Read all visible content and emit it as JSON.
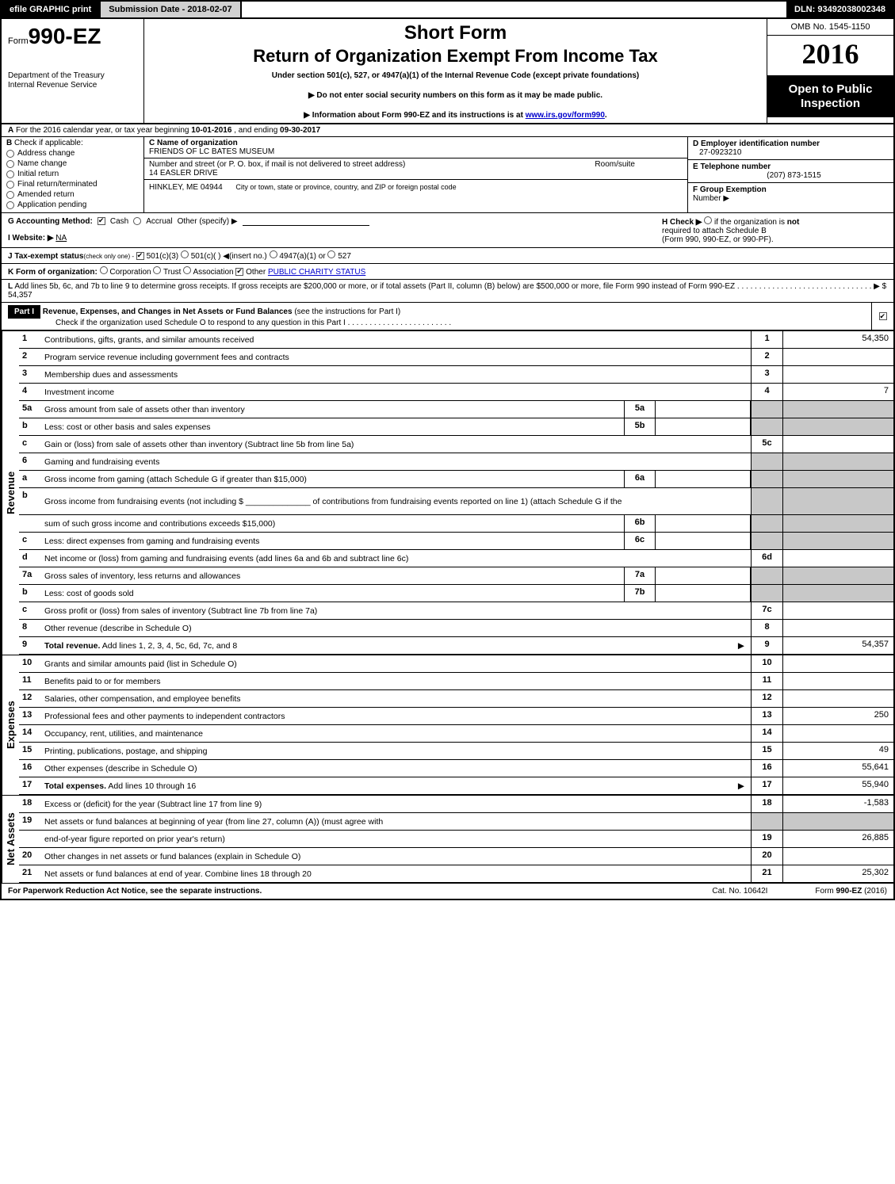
{
  "topbar": {
    "efile": "efile GRAPHIC print",
    "submission_label": "Submission Date - 2018-02-07",
    "dln": "DLN: 93492038002348"
  },
  "header": {
    "form_prefix": "Form",
    "form_no": "990-EZ",
    "dept1": "Department of the Treasury",
    "dept2": "Internal Revenue Service",
    "short_form": "Short Form",
    "title": "Return of Organization Exempt From Income Tax",
    "sub1": "Under section 501(c), 527, or 4947(a)(1) of the Internal Revenue Code (except private foundations)",
    "sub2a": "▶ Do not enter social security numbers on this form as it may be made public.",
    "sub2b_pre": "▶ Information about Form 990-EZ and its instructions is at ",
    "sub2b_link": "www.irs.gov/form990",
    "sub2b_post": ".",
    "omb": "OMB No. 1545-1150",
    "year": "2016",
    "open1": "Open to Public",
    "open2": "Inspection"
  },
  "rowA": {
    "letter": "A",
    "text_pre": "For the 2016 calendar year, or tax year beginning ",
    "begin": "10-01-2016",
    "text_mid": ", and ending ",
    "end": "09-30-2017"
  },
  "colB": {
    "letter": "B",
    "label": "Check if applicable:",
    "items": [
      "Address change",
      "Name change",
      "Initial return",
      "Final return/terminated",
      "Amended return",
      "Application pending"
    ]
  },
  "colC": {
    "c_label": "C Name of organization",
    "c_name": "FRIENDS OF LC BATES MUSEUM",
    "addr_label": "Number and street (or P. O. box, if mail is not delivered to street address)",
    "addr": "14 EASLER DRIVE",
    "room_label": "Room/suite",
    "city_line": "HINKLEY, ME  04944",
    "city_help": "City or town, state or province, country, and ZIP or foreign postal code"
  },
  "colDEF": {
    "d_label": "D Employer identification number",
    "d_val": "27-0923210",
    "e_label": "E Telephone number",
    "e_val": "(207) 873-1515",
    "f_label": "F Group Exemption",
    "f_label2": "Number   ▶"
  },
  "rowG": {
    "g_label": "G Accounting Method:",
    "g_opts": [
      "Cash",
      "Accrual",
      "Other (specify) ▶"
    ],
    "h_label": "H   Check ▶",
    "h_text1": "if the organization is ",
    "h_not": "not",
    "h_text2": "required to attach Schedule B",
    "h_text3": "(Form 990, 990-EZ, or 990-PF)."
  },
  "rowI": {
    "label": "I Website: ▶",
    "val": "NA"
  },
  "rowJ": {
    "label": "J Tax-exempt status",
    "small": "(check only one) -",
    "o1": "501(c)(3)",
    "o2": "501(c)(  ) ◀(insert no.)",
    "o3": "4947(a)(1) or",
    "o4": "527"
  },
  "rowK": {
    "label": "K Form of organization:",
    "opts": [
      "Corporation",
      "Trust",
      "Association",
      "Other"
    ],
    "other_link": "PUBLIC CHARITY STATUS"
  },
  "rowL": {
    "label": "L",
    "text": "Add lines 5b, 6c, and 7b to line 9 to determine gross receipts. If gross receipts are $200,000 or more, or if total assets (Part II, column (B) below) are $500,000 or more, file Form 990 instead of Form 990-EZ",
    "dots": ". . . . . . . . . . . . . . . . . . . . . . . . . . . . . . .",
    "amt": "▶ $ 54,357"
  },
  "part1": {
    "hdr": "Part I",
    "title": "Revenue, Expenses, and Changes in Net Assets or Fund Balances",
    "title_paren": "(see the instructions for Part I)",
    "check_line": "Check if the organization used Schedule O to respond to any question in this Part I ",
    "check_dots": ". . . . . . . . . . . . . . . . . . . . . . . ."
  },
  "sections": [
    {
      "side": "Revenue",
      "rows": [
        {
          "n": "1",
          "desc": "Contributions, gifts, grants, and similar amounts received",
          "rn": "1",
          "rv": "54,350"
        },
        {
          "n": "2",
          "desc": "Program service revenue including government fees and contracts",
          "rn": "2",
          "rv": ""
        },
        {
          "n": "3",
          "desc": "Membership dues and assessments",
          "rn": "3",
          "rv": ""
        },
        {
          "n": "4",
          "desc": "Investment income",
          "rn": "4",
          "rv": "7"
        },
        {
          "n": "5a",
          "desc": "Gross amount from sale of assets other than inventory",
          "mn": "5a",
          "grey_r": true
        },
        {
          "n": "b",
          "desc": "Less: cost or other basis and sales expenses",
          "mn": "5b",
          "grey_r": true
        },
        {
          "n": "c",
          "desc": "Gain or (loss) from sale of assets other than inventory (Subtract line 5b from line 5a)",
          "rn": "5c",
          "rv": ""
        },
        {
          "n": "6",
          "desc": "Gaming and fundraising events",
          "grey_r": true,
          "no_r": true
        },
        {
          "n": "a",
          "desc": "Gross income from gaming (attach Schedule G if greater than $15,000)",
          "mn": "6a",
          "grey_r": true
        },
        {
          "n": "b",
          "desc": "Gross income from fundraising events (not including $ ______________ of contributions from fundraising events reported on line 1) (attach Schedule G if the",
          "grey_r": true,
          "no_r": true,
          "tall": true
        },
        {
          "n": "",
          "desc": "sum of such gross income and contributions exceeds $15,000)",
          "mn": "6b",
          "grey_r": true
        },
        {
          "n": "c",
          "desc": "Less: direct expenses from gaming and fundraising events",
          "mn": "6c",
          "grey_r": true
        },
        {
          "n": "d",
          "desc": "Net income or (loss) from gaming and fundraising events (add lines 6a and 6b and subtract line 6c)",
          "rn": "6d",
          "rv": ""
        },
        {
          "n": "7a",
          "desc": "Gross sales of inventory, less returns and allowances",
          "mn": "7a",
          "grey_r": true
        },
        {
          "n": "b",
          "desc": "Less: cost of goods sold",
          "mn": "7b",
          "grey_r": true
        },
        {
          "n": "c",
          "desc": "Gross profit or (loss) from sales of inventory (Subtract line 7b from line 7a)",
          "rn": "7c",
          "rv": ""
        },
        {
          "n": "8",
          "desc": "Other revenue (describe in Schedule O)",
          "rn": "8",
          "rv": ""
        },
        {
          "n": "9",
          "desc": "Total revenue. Add lines 1, 2, 3, 4, 5c, 6d, 7c, and 8",
          "rn": "9",
          "rv": "54,357",
          "bold": true,
          "arrow": true
        }
      ]
    },
    {
      "side": "Expenses",
      "rows": [
        {
          "n": "10",
          "desc": "Grants and similar amounts paid (list in Schedule O)",
          "rn": "10",
          "rv": ""
        },
        {
          "n": "11",
          "desc": "Benefits paid to or for members",
          "rn": "11",
          "rv": ""
        },
        {
          "n": "12",
          "desc": "Salaries, other compensation, and employee benefits",
          "rn": "12",
          "rv": ""
        },
        {
          "n": "13",
          "desc": "Professional fees and other payments to independent contractors",
          "rn": "13",
          "rv": "250"
        },
        {
          "n": "14",
          "desc": "Occupancy, rent, utilities, and maintenance",
          "rn": "14",
          "rv": ""
        },
        {
          "n": "15",
          "desc": "Printing, publications, postage, and shipping",
          "rn": "15",
          "rv": "49"
        },
        {
          "n": "16",
          "desc": "Other expenses (describe in Schedule O)",
          "rn": "16",
          "rv": "55,641"
        },
        {
          "n": "17",
          "desc": "Total expenses. Add lines 10 through 16",
          "rn": "17",
          "rv": "55,940",
          "bold": true,
          "arrow": true
        }
      ]
    },
    {
      "side": "Net Assets",
      "rows": [
        {
          "n": "18",
          "desc": "Excess or (deficit) for the year (Subtract line 17 from line 9)",
          "rn": "18",
          "rv": "-1,583"
        },
        {
          "n": "19",
          "desc": "Net assets or fund balances at beginning of year (from line 27, column (A)) (must agree with",
          "grey_r": true,
          "no_r": true
        },
        {
          "n": "",
          "desc": "end-of-year figure reported on prior year's return)",
          "rn": "19",
          "rv": "26,885"
        },
        {
          "n": "20",
          "desc": "Other changes in net assets or fund balances (explain in Schedule O)",
          "rn": "20",
          "rv": ""
        },
        {
          "n": "21",
          "desc": "Net assets or fund balances at end of year. Combine lines 18 through 20",
          "rn": "21",
          "rv": "25,302"
        }
      ]
    }
  ],
  "footer": {
    "left": "For Paperwork Reduction Act Notice, see the separate instructions.",
    "mid": "Cat. No. 10642I",
    "right_pre": "Form ",
    "right_bold": "990-EZ",
    "right_post": " (2016)"
  },
  "colors": {
    "black": "#000000",
    "grey": "#c8c8c8",
    "link": "#0000cc"
  }
}
